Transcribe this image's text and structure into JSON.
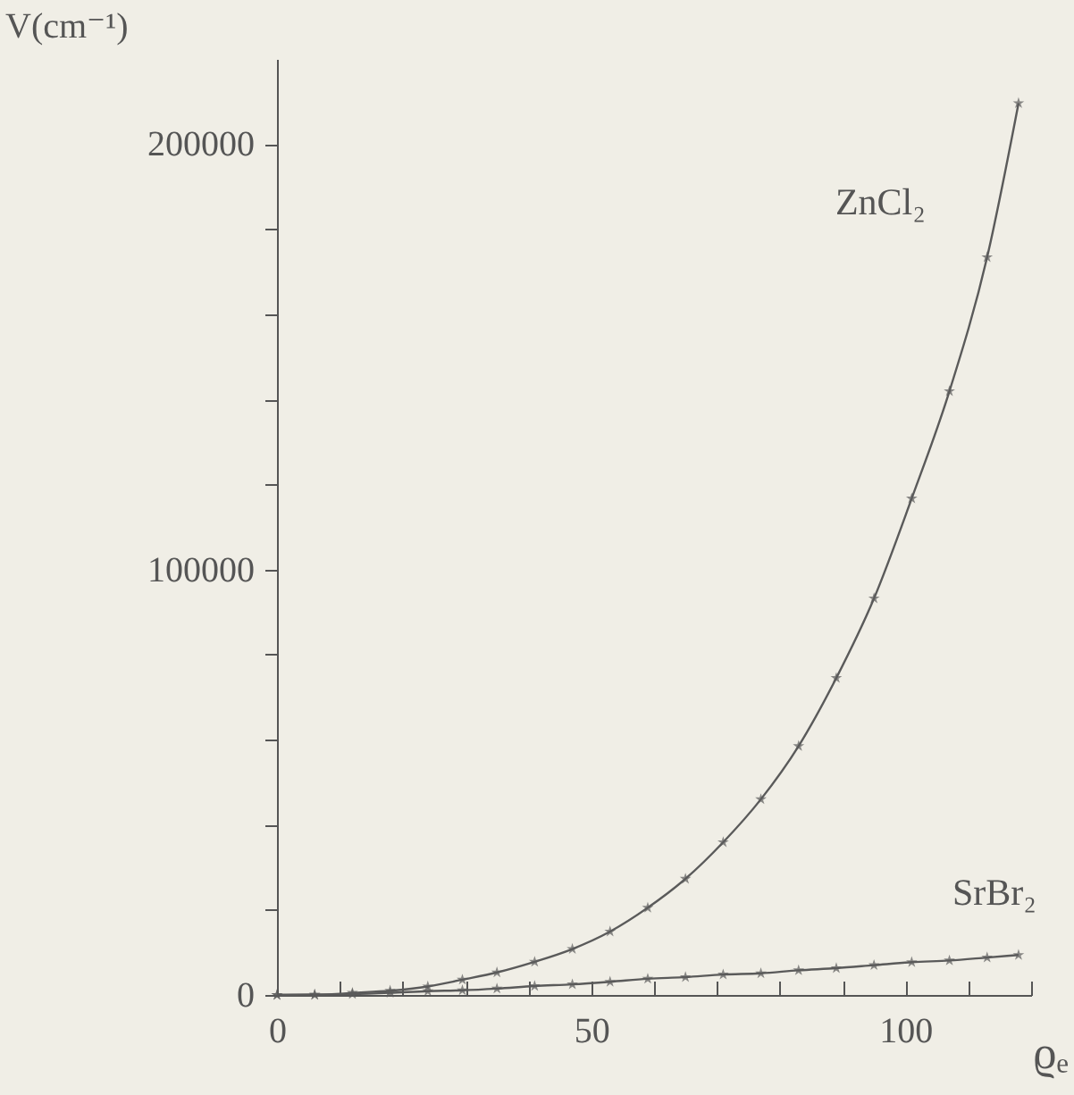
{
  "chart_data": {
    "type": "line",
    "xlabel": "ϱₑ",
    "ylabel": "V(cm⁻¹)",
    "x": [
      0,
      6,
      12,
      18,
      24,
      29.5,
      35,
      41,
      47,
      53,
      59,
      65,
      71,
      77,
      83,
      89,
      95,
      101,
      107,
      113,
      118
    ],
    "series": [
      {
        "name": "ZnCl₂",
        "color": "#5a5a5a",
        "values": [
          0,
          0,
          500,
          1000,
          2000,
          3600,
          5300,
          7800,
          10800,
          14900,
          20500,
          27300,
          35900,
          46000,
          58500,
          74500,
          93200,
          116700,
          141900,
          173400,
          209600
        ]
      },
      {
        "name": "SrBr₂",
        "color": "#5a5a5a",
        "values": [
          0,
          100,
          200,
          500,
          900,
          1100,
          1500,
          2100,
          2500,
          3100,
          3800,
          4200,
          4800,
          5100,
          5800,
          6300,
          7000,
          7700,
          8100,
          8800,
          9400
        ]
      }
    ],
    "xlim": [
      0,
      120
    ],
    "ylim": [
      0,
      220000
    ],
    "xticks": [
      0,
      {
        "value": 10,
        "label": null
      },
      {
        "value": 20,
        "label": null
      },
      {
        "value": 30,
        "label": null
      },
      {
        "value": 40,
        "label": null
      },
      50,
      {
        "value": 60,
        "label": null
      },
      {
        "value": 70,
        "label": null
      },
      {
        "value": 80,
        "label": null
      },
      {
        "value": 90,
        "label": null
      },
      100,
      {
        "value": 110,
        "label": null
      },
      {
        "value": 120,
        "label": null
      }
    ],
    "yticks": [
      0,
      {
        "value": 20000,
        "label": null
      },
      {
        "value": 40000,
        "label": null
      },
      {
        "value": 60000,
        "label": null
      },
      {
        "value": 80000,
        "label": null
      },
      100000,
      {
        "value": 120000,
        "label": null
      },
      {
        "value": 140000,
        "label": null
      },
      {
        "value": 160000,
        "label": null
      },
      {
        "value": 180000,
        "label": null
      },
      200000
    ],
    "grid": false,
    "legend": false,
    "marker": "star",
    "line_style": "solid"
  }
}
